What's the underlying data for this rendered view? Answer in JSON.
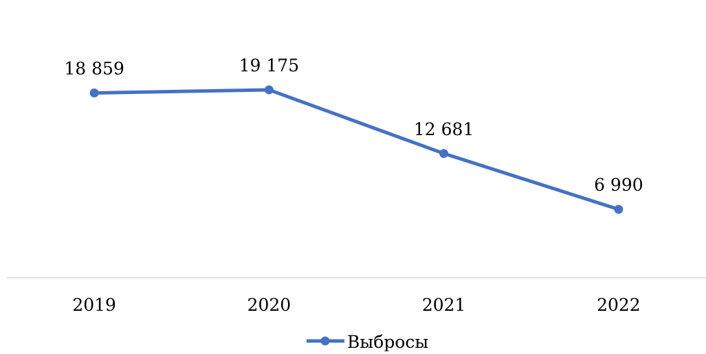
{
  "chart_data": {
    "type": "line",
    "categories": [
      "2019",
      "2020",
      "2021",
      "2022"
    ],
    "series": [
      {
        "name": "Выбросы",
        "values": [
          18859,
          19175,
          12681,
          6990
        ],
        "labels": [
          "18 859",
          "19 175",
          "12 681",
          "6 990"
        ],
        "color": "#4472C4"
      }
    ],
    "ylim": [
      0,
      24000
    ],
    "grid": false,
    "legend": "bottom-center",
    "axis_color": "#D9D9D9"
  }
}
